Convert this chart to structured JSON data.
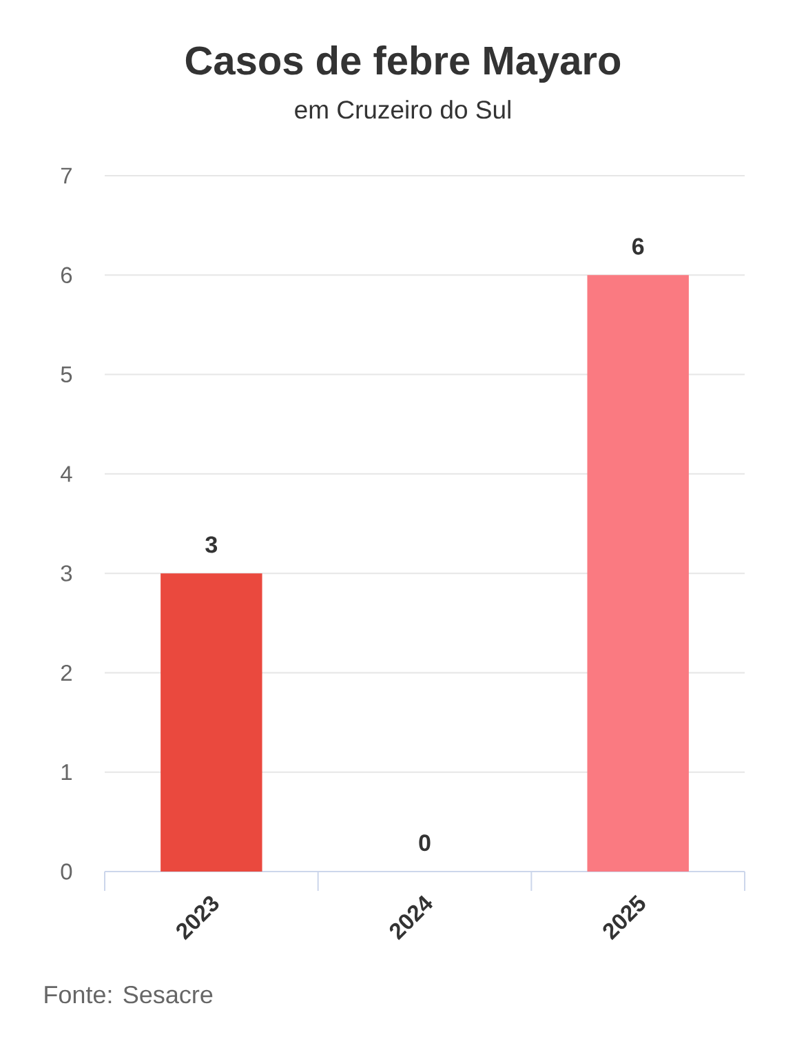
{
  "chart_data": {
    "type": "bar",
    "title": "Casos de febre Mayaro",
    "subtitle": "em Cruzeiro do Sul",
    "categories": [
      "2023",
      "2024",
      "2025"
    ],
    "values": [
      3,
      0,
      6
    ],
    "colors": [
      "#ea493e",
      "#f2625f",
      "#fa7a81"
    ],
    "ylim": [
      0,
      7
    ],
    "yticks": [
      0,
      1,
      2,
      3,
      4,
      5,
      6,
      7
    ],
    "grid": "y",
    "data_labels": true,
    "annotations": [
      "Fonte: Sesacre"
    ]
  }
}
